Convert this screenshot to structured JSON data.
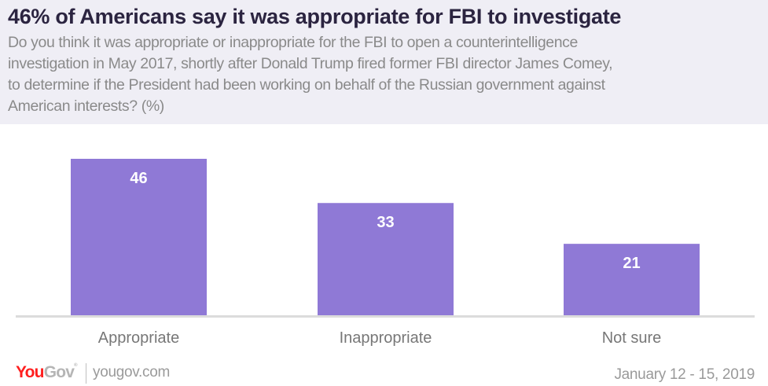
{
  "header": {
    "title": "46% of Americans say it was appropriate for FBI to investigate",
    "subtitle_lines": [
      "Do you think it was appropriate or inappropriate for the FBI to open a counterintelligence",
      "investigation in May 2017, shortly after Donald Trump fired former FBI director James Comey,",
      "to determine if the President had been working on behalf of the Russian government against",
      "American interests? (%)"
    ]
  },
  "chart_data": {
    "type": "bar",
    "title": "46% of Americans say it was appropriate for FBI to investigate",
    "xlabel": "",
    "ylabel": "",
    "categories": [
      "Appropriate",
      "Inappropriate",
      "Not sure"
    ],
    "values": [
      46,
      33,
      21
    ],
    "unit": "%",
    "ylim": [
      0,
      46
    ],
    "grid": false,
    "data_labels": [
      "46",
      "33",
      "21"
    ],
    "bar_color": "#8f79d6",
    "label_color": "#ffffff",
    "axis_color": "#dcdcdc",
    "legend": "none"
  },
  "footer": {
    "logo_you": "You",
    "logo_gov": "Gov",
    "logo_mark": "®",
    "url": "yougov.com",
    "date": "January 12 - 15, 2019"
  }
}
